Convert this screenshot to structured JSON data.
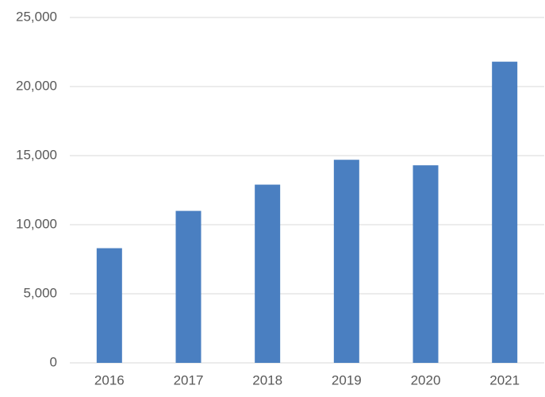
{
  "chart_data": {
    "type": "bar",
    "categories": [
      "2016",
      "2017",
      "2018",
      "2019",
      "2020",
      "2021"
    ],
    "values": [
      8300,
      11000,
      12900,
      14700,
      14300,
      21800
    ],
    "color": "#4a7fc1",
    "ylim": [
      0,
      25000
    ],
    "yticks": [
      0,
      {
        "value": 5000,
        "label": "5,000"
      },
      {
        "value": 10000,
        "label": "10,000"
      },
      {
        "value": 15000,
        "label": "15,000"
      },
      {
        "value": 20000,
        "label": "20,000"
      },
      {
        "value": 25000,
        "label": "25,000"
      }
    ],
    "grid": true
  }
}
